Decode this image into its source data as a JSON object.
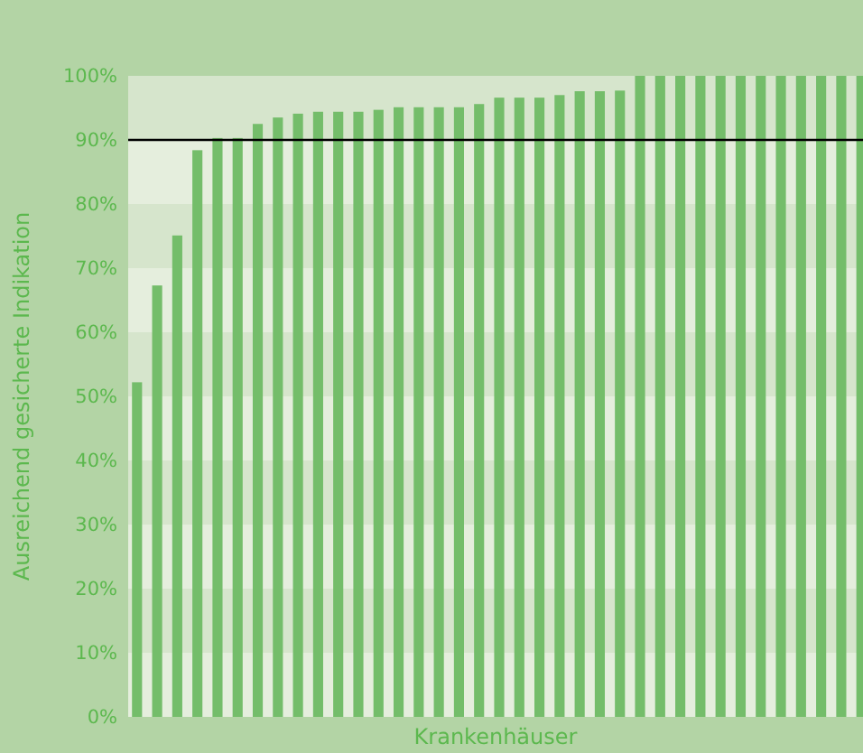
{
  "chart_data": {
    "type": "bar",
    "xlabel": "Krankenhäuser",
    "ylabel": "Ausreichend gesicherte Indikation",
    "categories": [
      null,
      null,
      null,
      null,
      null,
      null,
      null,
      null,
      null,
      null,
      null,
      null,
      null,
      null,
      null,
      null,
      null,
      null,
      null,
      null,
      null,
      null,
      null,
      null,
      null,
      null,
      null,
      null,
      null,
      null,
      null,
      null,
      null,
      null,
      null,
      null,
      null
    ],
    "values": [
      52.2,
      67.3,
      75.1,
      88.4,
      90.3,
      90.3,
      92.5,
      93.5,
      94.1,
      94.4,
      94.4,
      94.4,
      94.7,
      95.1,
      95.1,
      95.1,
      95.1,
      95.6,
      96.6,
      96.6,
      96.6,
      97.0,
      97.6,
      97.6,
      97.7,
      100,
      100,
      100,
      100,
      100,
      100,
      100,
      100,
      100,
      100,
      100,
      100
    ],
    "color": "#74bd6a",
    "ylim": [
      0,
      100
    ],
    "yticks": [
      {
        "value": 0,
        "label": "0%"
      },
      {
        "value": 10,
        "label": "10%"
      },
      {
        "value": 20,
        "label": "20%"
      },
      {
        "value": 30,
        "label": "30%"
      },
      {
        "value": 40,
        "label": "40%"
      },
      {
        "value": 50,
        "label": "50%"
      },
      {
        "value": 60,
        "label": "60%"
      },
      {
        "value": 70,
        "label": "70%"
      },
      {
        "value": 80,
        "label": "80%"
      },
      {
        "value": 90,
        "label": "90%"
      },
      {
        "value": 100,
        "label": "100%"
      }
    ],
    "bands": [
      {
        "axis": "y",
        "from": 10,
        "to": 20,
        "color": "#d6e5cc"
      },
      {
        "axis": "y",
        "from": 30,
        "to": 40,
        "color": "#d6e5cc"
      },
      {
        "axis": "y",
        "from": 50,
        "to": 60,
        "color": "#d6e5cc"
      },
      {
        "axis": "y",
        "from": 70,
        "to": 80,
        "color": "#d6e5cc"
      },
      {
        "axis": "y",
        "from": 90,
        "to": 100,
        "color": "#d6e5cc"
      }
    ],
    "ref_lines": [
      {
        "axis": "y",
        "value": 90,
        "color": "#000000"
      }
    ]
  }
}
